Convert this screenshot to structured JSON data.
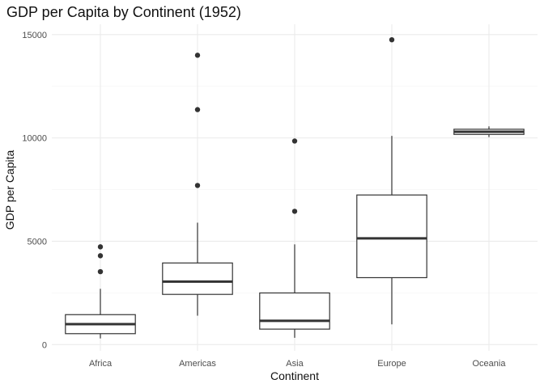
{
  "chart_data": {
    "type": "boxplot",
    "title": "GDP per Capita by Continent (1952)",
    "xlabel": "Continent",
    "ylabel": "GDP per Capita",
    "ylim": [
      -300,
      15500
    ],
    "yticks": [
      0,
      5000,
      10000,
      15000
    ],
    "ytick_labels": [
      "0",
      "5000",
      "10000",
      "15000"
    ],
    "grid": true,
    "categories": [
      "Africa",
      "Americas",
      "Asia",
      "Europe",
      "Oceania"
    ],
    "boxes": [
      {
        "category": "Africa",
        "whisker_low": 300,
        "q1": 530,
        "median": 990,
        "q3": 1450,
        "whisker_high": 2700,
        "outliers": [
          3530,
          4300,
          4730
        ]
      },
      {
        "category": "Americas",
        "whisker_low": 1400,
        "q1": 2430,
        "median": 3050,
        "q3": 3950,
        "whisker_high": 5900,
        "outliers": [
          7700,
          11370,
          14000
        ]
      },
      {
        "category": "Asia",
        "whisker_low": 330,
        "q1": 750,
        "median": 1150,
        "q3": 2500,
        "whisker_high": 4850,
        "outliers": [
          6450,
          9850
        ]
      },
      {
        "category": "Europe",
        "whisker_low": 980,
        "q1": 3240,
        "median": 5140,
        "q3": 7240,
        "whisker_high": 10100,
        "outliers": [
          14750
        ]
      },
      {
        "category": "Oceania",
        "whisker_low": 10040,
        "q1": 10170,
        "median": 10300,
        "q3": 10420,
        "whisker_high": 10560,
        "outliers": []
      }
    ]
  }
}
